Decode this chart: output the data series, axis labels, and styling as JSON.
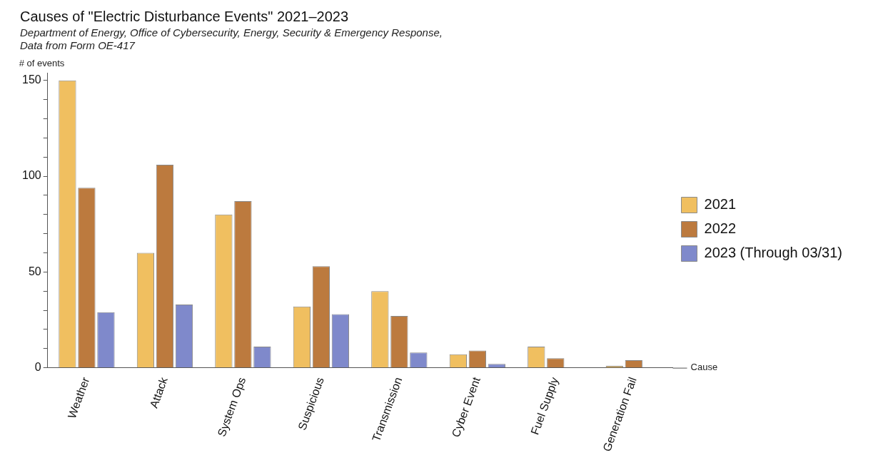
{
  "chart_data": {
    "type": "bar",
    "title": "Causes of \"Electric Disturbance Events\" 2021–2023",
    "subtitle": "Department of Energy, Office of Cybersecurity, Energy, Security & Emergency Response,\nData from Form OE-417",
    "ylabel": "# of events",
    "xlabel": "Cause",
    "categories": [
      "Weather",
      "Attack",
      "System Ops",
      "Suspicious",
      "Transmission",
      "Cyber Event",
      "Fuel Supply",
      "Generation Fail"
    ],
    "series": [
      {
        "name": "2021",
        "color": "#f0bf60",
        "values": [
          150,
          60,
          80,
          32,
          40,
          7,
          11,
          1
        ]
      },
      {
        "name": "2022",
        "color": "#bc7a3e",
        "values": [
          94,
          106,
          87,
          53,
          27,
          9,
          5,
          4
        ]
      },
      {
        "name": "2023 (Through 03/31)",
        "color": "#7f89cb",
        "values": [
          29,
          33,
          11,
          28,
          8,
          2,
          0,
          0
        ]
      }
    ],
    "ylim": [
      0,
      154
    ],
    "yticks": [
      0,
      {
        "value": 10,
        "label": null
      },
      {
        "value": 20,
        "label": null
      },
      {
        "value": 30,
        "label": null
      },
      {
        "value": 40,
        "label": null
      },
      50,
      {
        "value": 60,
        "label": null
      },
      {
        "value": 70,
        "label": null
      },
      {
        "value": 80,
        "label": null
      },
      {
        "value": 90,
        "label": null
      },
      100,
      {
        "value": 110,
        "label": null
      },
      {
        "value": 120,
        "label": null
      },
      {
        "value": 130,
        "label": null
      },
      {
        "value": 140,
        "label": null
      },
      150
    ],
    "grid": false,
    "legend": "right"
  }
}
